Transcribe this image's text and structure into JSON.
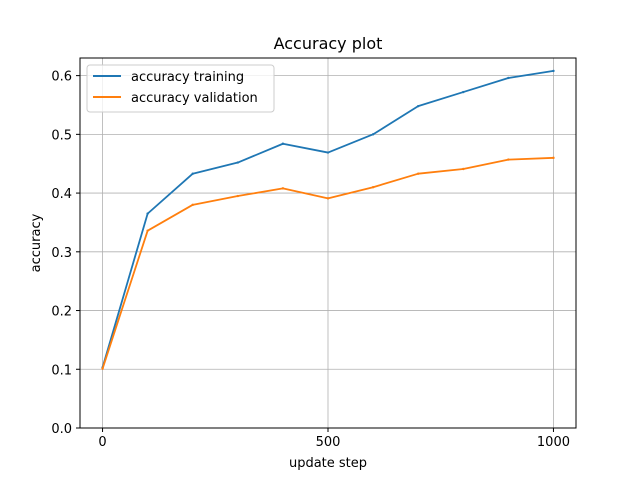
{
  "chart_data": {
    "type": "line",
    "title": "Accuracy plot",
    "xlabel": "update step",
    "ylabel": "accuracy",
    "xlim": [
      -50,
      1050
    ],
    "ylim": [
      0.0,
      0.63
    ],
    "xticks": [
      0,
      500,
      1000
    ],
    "xtick_labels": [
      "0",
      "500",
      "1000"
    ],
    "yticks": [
      0.0,
      0.1,
      0.2,
      0.3,
      0.4,
      0.5,
      0.6
    ],
    "ytick_labels": [
      "0.0",
      "0.1",
      "0.2",
      "0.3",
      "0.4",
      "0.5",
      "0.6"
    ],
    "grid": true,
    "legend_position": "top-left",
    "x": [
      0,
      100,
      200,
      300,
      400,
      500,
      600,
      700,
      800,
      900,
      1000
    ],
    "series": [
      {
        "name": "accuracy training",
        "color": "#1f77b4",
        "values": [
          0.103,
          0.365,
          0.433,
          0.452,
          0.484,
          0.469,
          0.5,
          0.548,
          0.572,
          0.596,
          0.608
        ]
      },
      {
        "name": "accuracy validation",
        "color": "#ff7f0e",
        "values": [
          0.101,
          0.336,
          0.38,
          0.395,
          0.408,
          0.391,
          0.41,
          0.433,
          0.441,
          0.457,
          0.46
        ]
      }
    ]
  }
}
